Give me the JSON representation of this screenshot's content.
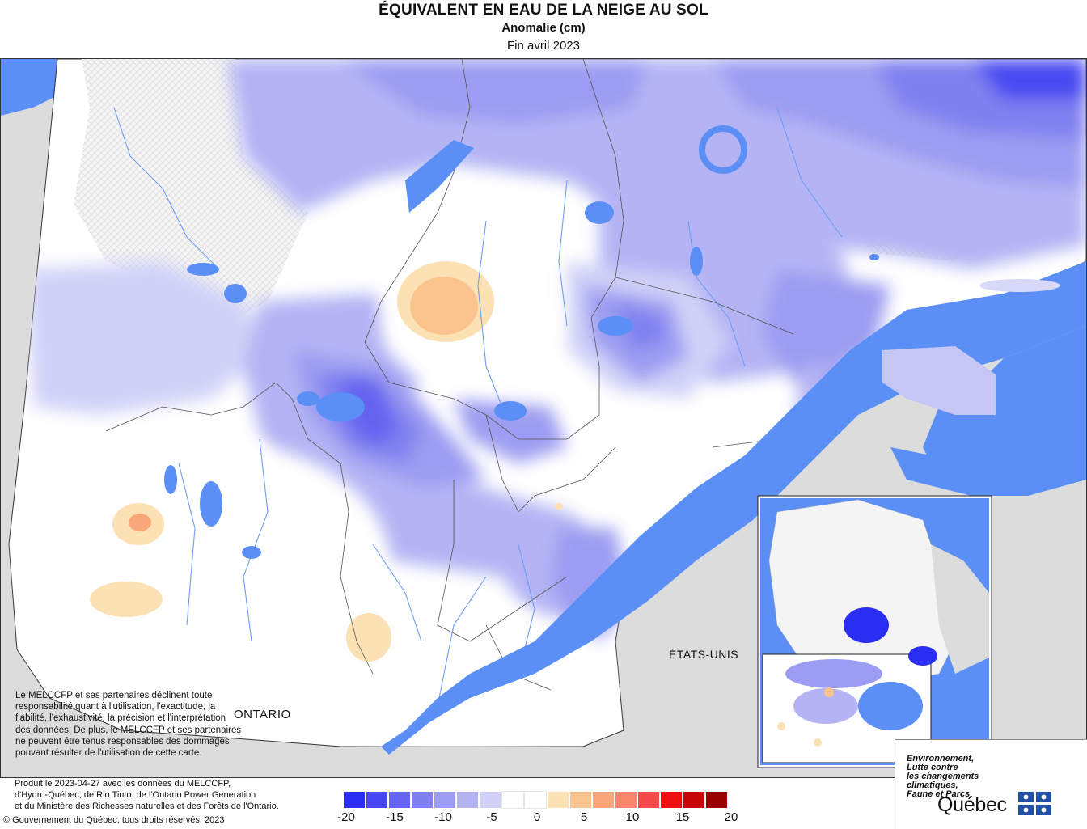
{
  "header": {
    "title": "ÉQUIVALENT EN EAU DE LA NEIGE AU SOL",
    "subtitle": "Anomalie (cm)",
    "period": "Fin avril 2023"
  },
  "map": {
    "labels": {
      "ontario": "ONTARIO",
      "usa": "ÉTATS-UNIS"
    },
    "colors": {
      "water": "#5b8ff5",
      "land_outside": "#dcdcdc",
      "no_data": "#f4f4f4"
    }
  },
  "disclaimer": "Le MELCCFP et ses partenaires déclinent toute responsabilité quant à l'utilisation, l'exactitude, la fiabilité, l'exhaustivité, la précision et l'interprétation des données. De plus, le MELCCFP et ses partenaires ne peuvent être tenus responsables des dommages pouvant résulter de l'utilisation de cette carte.",
  "footer": {
    "produced_line1": "Produit le 2023-04-27 avec les données du MELCCFP,",
    "produced_line2": "d'Hydro-Québec, de Rio Tinto, de l'Ontario Power Generation",
    "produced_line3": "et du Ministère des Richesses naturelles et des Forêts de l'Ontario.",
    "copyright": "© Gouvernement du Québec, tous droits réservés, 2023"
  },
  "legend": {
    "colors": [
      "#2a2ef2",
      "#4848f2",
      "#6464f0",
      "#8080f0",
      "#9c9cf2",
      "#b4b4f4",
      "#d2d2f8",
      "#ffffff",
      "#ffffff",
      "#fbe1b4",
      "#fbc48e",
      "#f9a67a",
      "#f7866a",
      "#f44a4a",
      "#ee1010",
      "#c80808",
      "#960000"
    ],
    "ticks": [
      "-20",
      "-15",
      "-10",
      "-5",
      "0",
      "5",
      "10",
      "15",
      "20"
    ]
  },
  "brand": {
    "line1": "Environnement,",
    "line2": "Lutte contre",
    "line3": "les changements",
    "line4": "climatiques,",
    "line5": "Faune et Parcs",
    "name": "Québec"
  }
}
